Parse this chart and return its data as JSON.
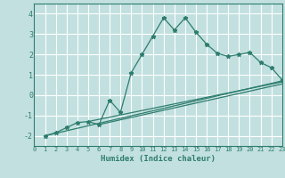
{
  "xlabel": "Humidex (Indice chaleur)",
  "background_color": "#c2e0e0",
  "grid_color": "#ffffff",
  "line_color": "#2e7d6e",
  "xlim": [
    0,
    23
  ],
  "ylim": [
    -2.5,
    4.5
  ],
  "xticks": [
    0,
    1,
    2,
    3,
    4,
    5,
    6,
    7,
    8,
    9,
    10,
    11,
    12,
    13,
    14,
    15,
    16,
    17,
    18,
    19,
    20,
    21,
    22,
    23
  ],
  "yticks": [
    -2,
    -1,
    0,
    1,
    2,
    3,
    4
  ],
  "series": [
    [
      1,
      -2
    ],
    [
      2,
      -1.85
    ],
    [
      3,
      -1.6
    ],
    [
      4,
      -1.35
    ],
    [
      5,
      -1.3
    ],
    [
      6,
      -1.45
    ],
    [
      7,
      -0.25
    ],
    [
      8,
      -0.85
    ],
    [
      9,
      1.1
    ],
    [
      10,
      2.0
    ],
    [
      11,
      2.9
    ],
    [
      12,
      3.8
    ],
    [
      13,
      3.2
    ],
    [
      14,
      3.8
    ],
    [
      15,
      3.1
    ],
    [
      16,
      2.5
    ],
    [
      17,
      2.05
    ],
    [
      18,
      1.9
    ],
    [
      19,
      2.0
    ],
    [
      20,
      2.1
    ],
    [
      21,
      1.6
    ],
    [
      22,
      1.35
    ],
    [
      23,
      0.75
    ]
  ],
  "line2": [
    [
      1,
      -2
    ],
    [
      23,
      0.7
    ]
  ],
  "line3": [
    [
      5,
      -1.3
    ],
    [
      23,
      0.65
    ]
  ],
  "line4": [
    [
      6,
      -1.45
    ],
    [
      23,
      0.55
    ]
  ]
}
